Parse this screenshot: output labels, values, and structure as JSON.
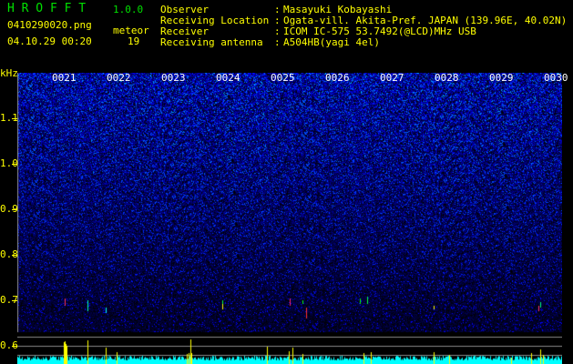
{
  "app": {
    "title": "H R O F F T",
    "version": "1.0.0"
  },
  "file": {
    "name": "0410290020.png",
    "datetime": "04.10.29 00:20"
  },
  "meteor": {
    "label": "meteor",
    "count": "19"
  },
  "info": [
    {
      "label": "Observer",
      "value": "Masayuki Kobayashi"
    },
    {
      "label": "Receiving Location",
      "value": "Ogata-vill. Akita-Pref. JAPAN (139.96E, 40.02N)"
    },
    {
      "label": "Receiver",
      "value": "ICOM IC-575 53.7492(@LCD)MHz USB"
    },
    {
      "label": "Receiving antenna",
      "value": "A504HB(yagi 4el)"
    }
  ],
  "axis": {
    "unit": "kHz",
    "y_ticks": [
      "1.1",
      "1.0",
      "0.9",
      "0.8",
      "0.7",
      "0.6"
    ],
    "time_labels": [
      "0021",
      "0022",
      "0023",
      "0024",
      "0025",
      "0026",
      "0027",
      "0028",
      "0029",
      "0030"
    ]
  },
  "colors": {
    "text": "#ffff00",
    "title": "#00e000",
    "noise": "#0000ff",
    "signal": "#00ffff",
    "meteor": "#ffff00"
  }
}
